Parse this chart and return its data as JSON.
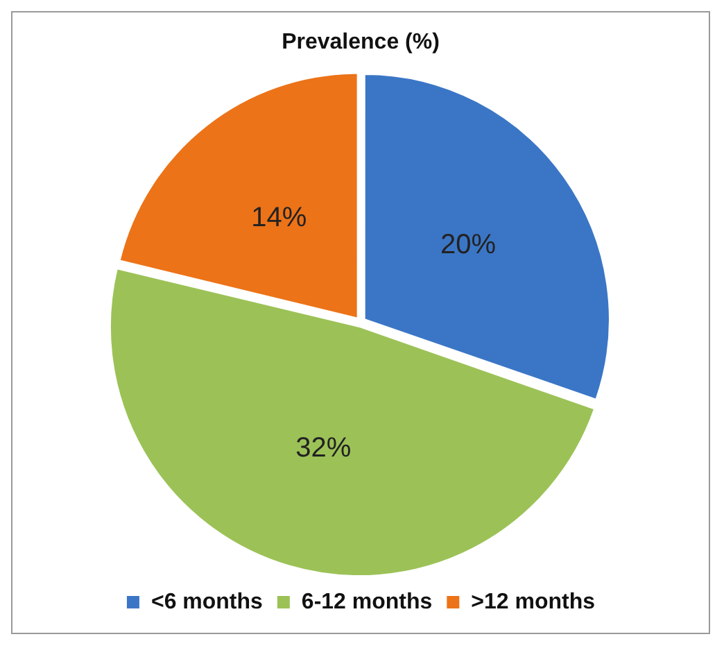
{
  "chart_data": {
    "type": "pie",
    "title": "Prevalence (%)",
    "categories": [
      "<6 months",
      "6-12 months",
      ">12 months"
    ],
    "values": [
      20,
      32,
      14
    ],
    "colors": [
      "#3b76c6",
      "#9cc257",
      "#ec7318"
    ],
    "value_labels": [
      "20%",
      "32%",
      "14%"
    ],
    "legend": "bottom"
  }
}
